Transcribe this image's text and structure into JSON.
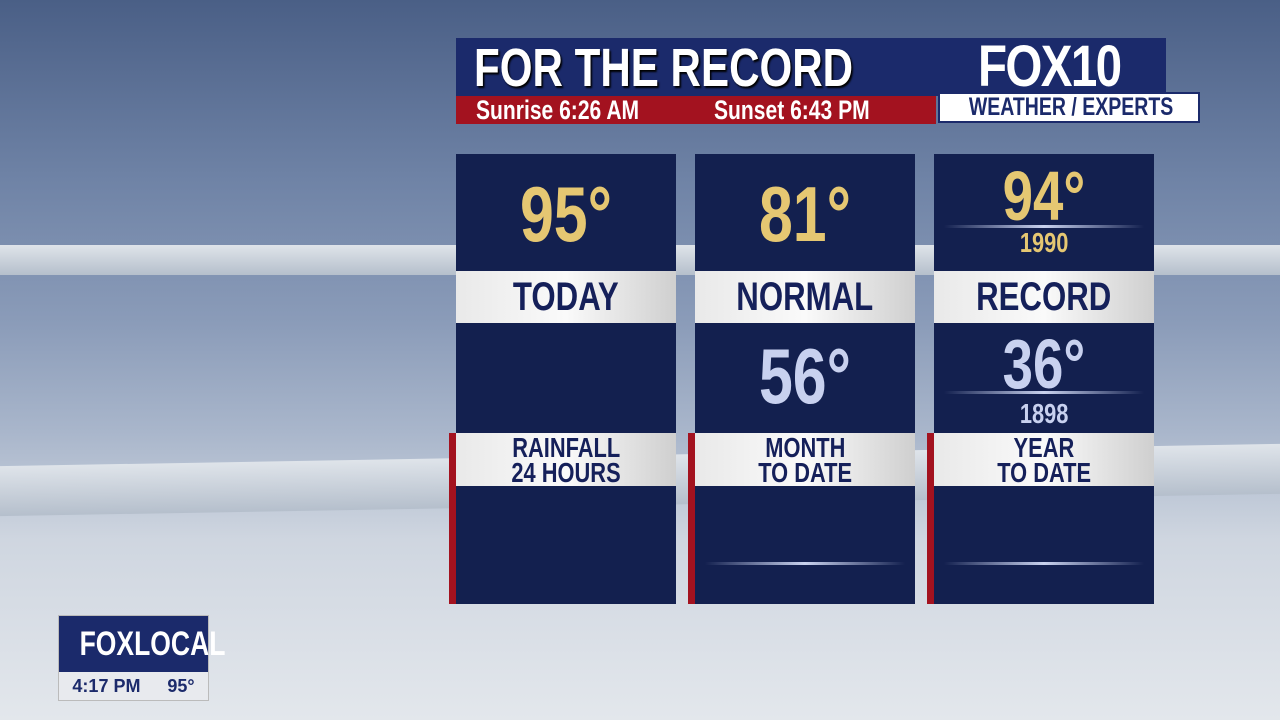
{
  "header": {
    "title": "FOR THE RECORD",
    "sunrise": "Sunrise 6:26 AM",
    "sunset": "Sunset 6:43 PM",
    "logo": "FOX10",
    "logo_sub": "WEATHER / EXPERTS"
  },
  "panels": [
    {
      "top_value": "95°",
      "label": "TODAY",
      "mid_value": "",
      "bottom_label_1": "RAINFALL",
      "bottom_label_2": "24 HOURS",
      "bottom_value": ""
    },
    {
      "top_value": "81°",
      "label": "NORMAL",
      "mid_value": "56°",
      "bottom_label_1": "MONTH",
      "bottom_label_2": "TO DATE",
      "bottom_value": ""
    },
    {
      "top_value": "94°",
      "top_year": "1990",
      "label": "RECORD",
      "mid_value": "36°",
      "mid_year": "1898",
      "bottom_label_1": "YEAR",
      "bottom_label_2": "TO DATE",
      "bottom_value": ""
    }
  ],
  "bug": {
    "logo": "FOXLOCAL",
    "time": "4:17 PM",
    "temp": "95°"
  },
  "colors": {
    "navy": "#13204f",
    "red": "#a3121f",
    "gold": "#e5c772",
    "lavender": "#c8d1ef"
  }
}
